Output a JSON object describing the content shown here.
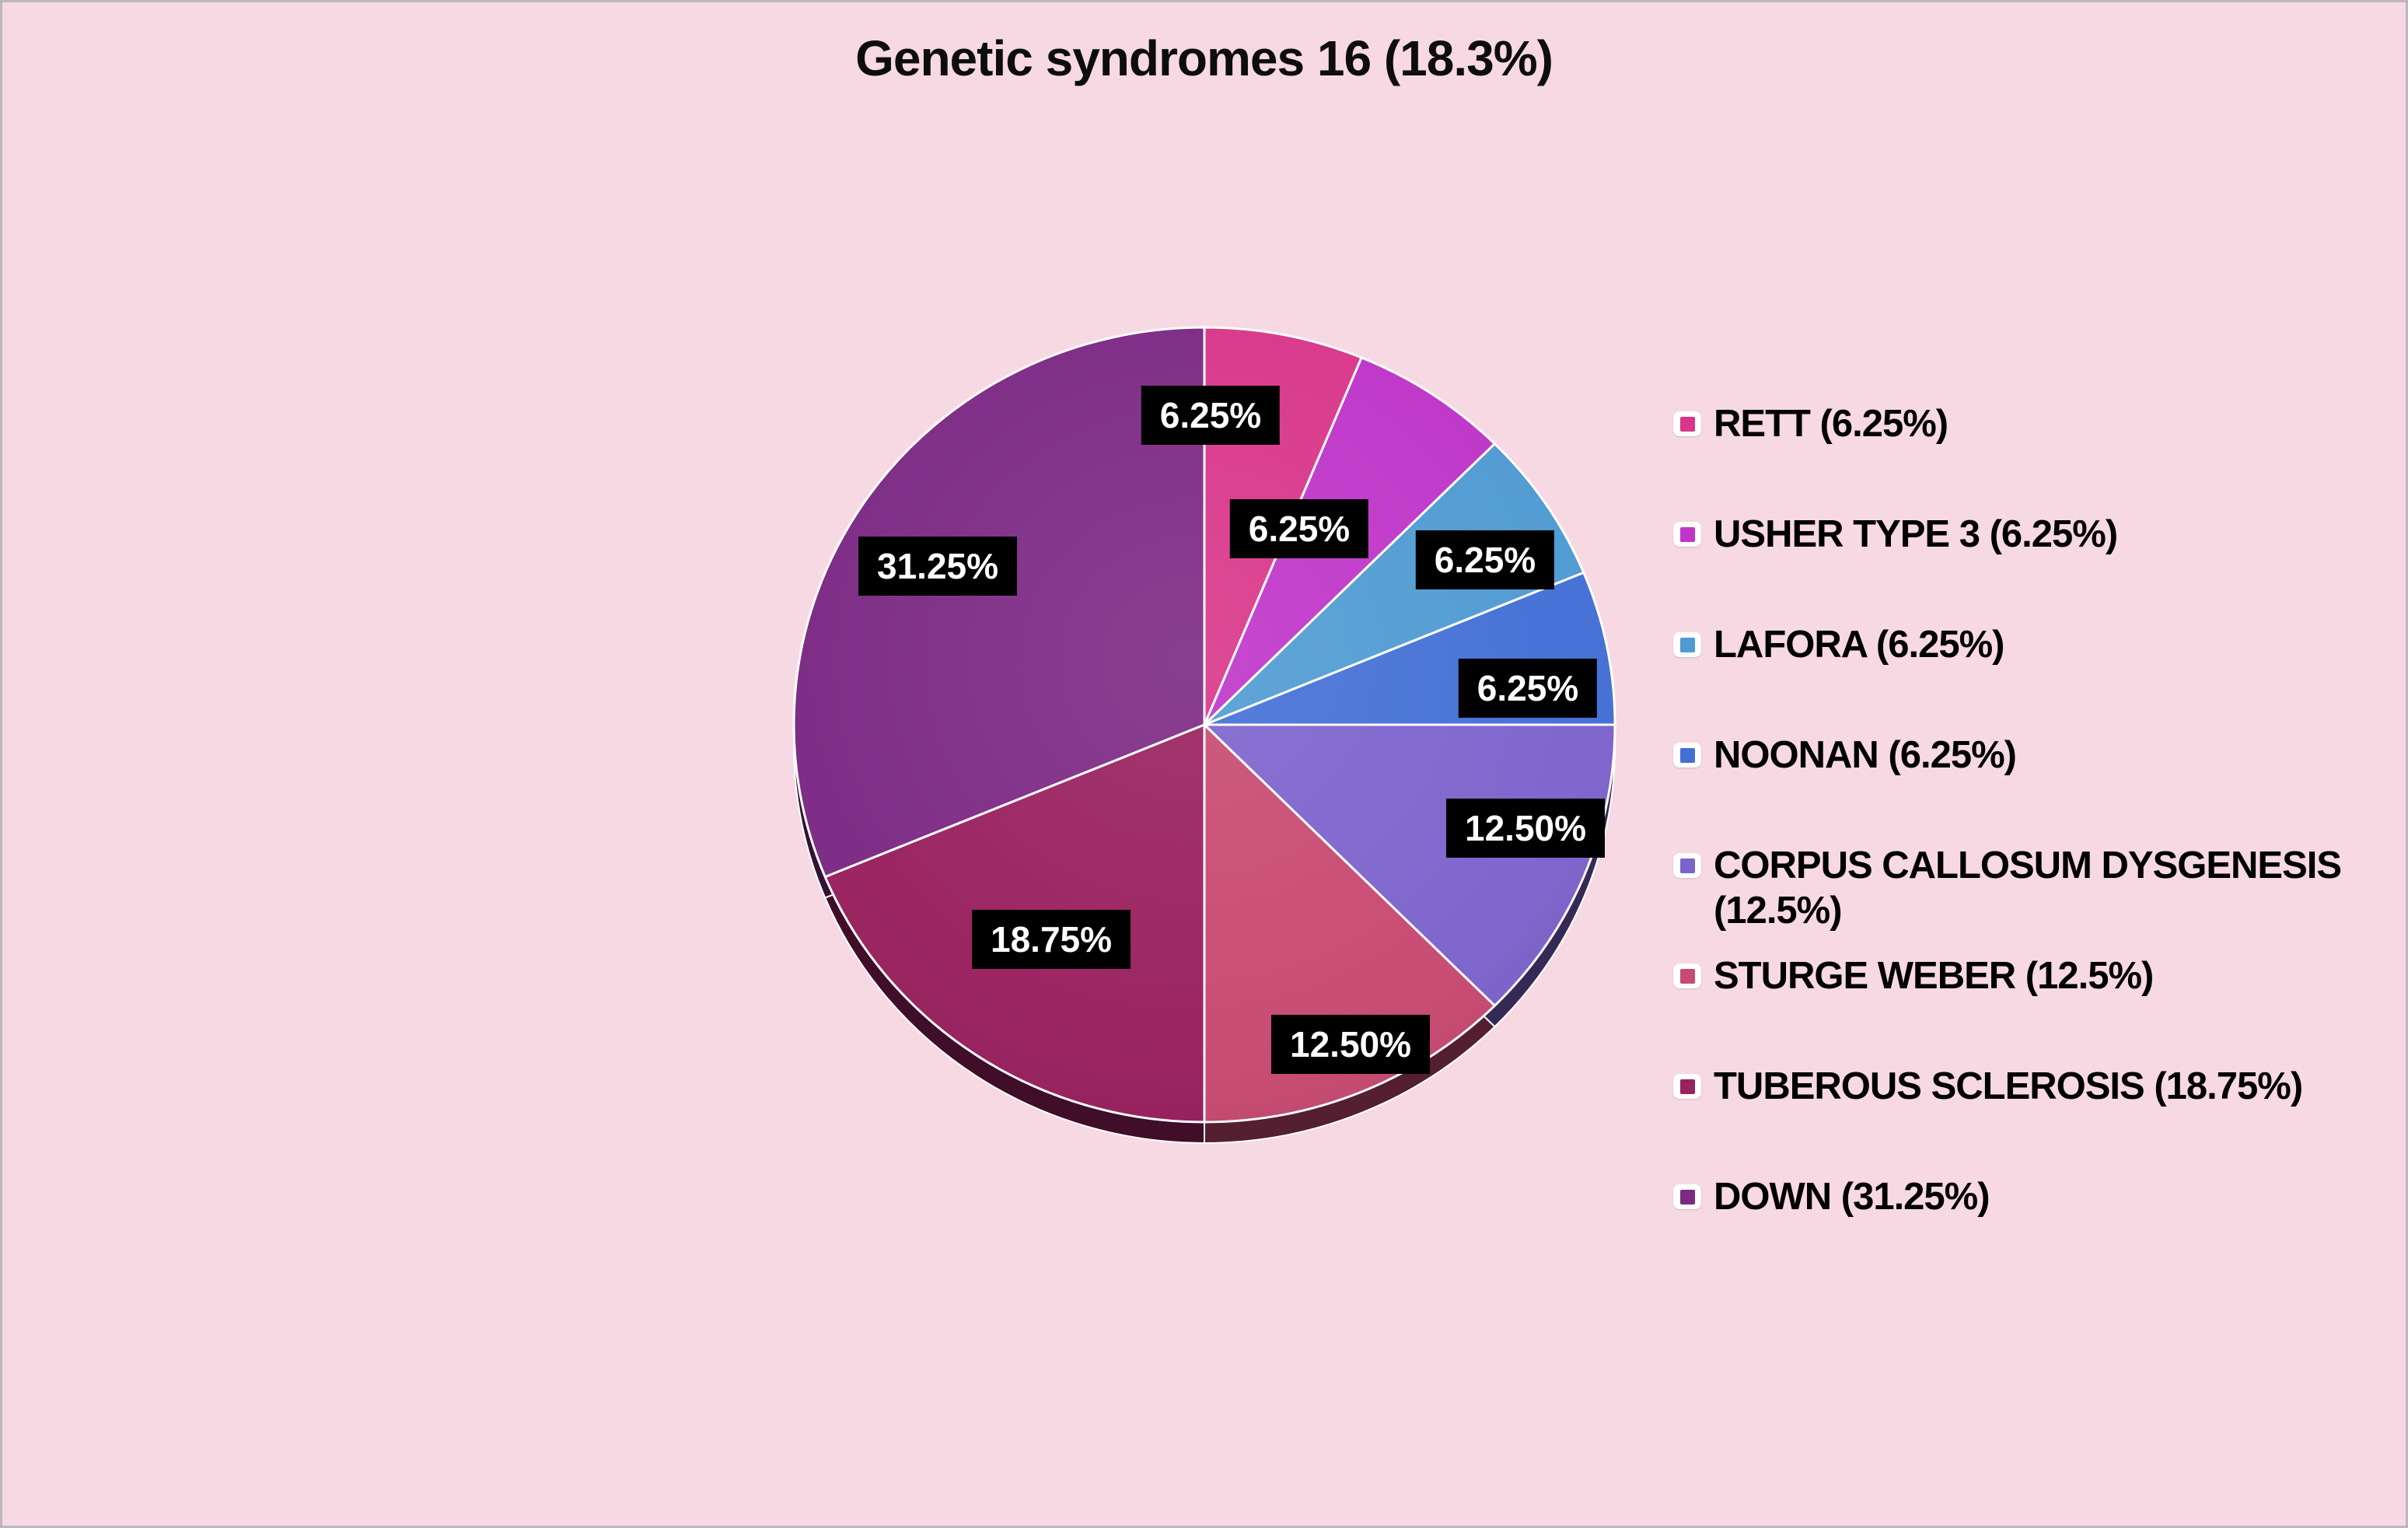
{
  "title": "Genetic syndromes 16 (18.3%)",
  "background_color": "#f7d9e3",
  "chart_data": {
    "type": "pie",
    "title": "Genetic syndromes 16 (18.3%)",
    "direction": "clockwise",
    "start_angle_deg": 0,
    "effect_3d": true,
    "legend_position": "right",
    "categories": [
      "RETT",
      "USHER TYPE 3",
      "LAFORA",
      "NOONAN",
      "CORPUS CALLOSUM DYSGENESIS",
      "STURGE WEBER",
      "TUBEROUS SCLEROSIS",
      "DOWN"
    ],
    "values": [
      6.25,
      6.25,
      6.25,
      6.25,
      12.5,
      12.5,
      18.75,
      31.25
    ],
    "data_labels": [
      "6.25%",
      "6.25%",
      "6.25%",
      "6.25%",
      "12.50%",
      "12.50%",
      "18.75%",
      "31.25%"
    ],
    "colors": [
      "#d9368a",
      "#bf35c9",
      "#4f9bd2",
      "#4470d6",
      "#7d64cd",
      "#c84a72",
      "#99215f",
      "#7c2a84"
    ],
    "data_label_style": {
      "background": "#000000",
      "color": "#ffffff"
    }
  },
  "legend": {
    "items": [
      {
        "label": " RETT (6.25%)",
        "color": "#d9368a"
      },
      {
        "label": "USHER TYPE 3 (6.25%)",
        "color": "#bf35c9"
      },
      {
        "label": "LAFORA (6.25%)",
        "color": "#4f9bd2"
      },
      {
        "label": "NOONAN (6.25%)",
        "color": "#4470d6"
      },
      {
        "label": "CORPUS CALLOSUM DYSGENESIS (12.5%)",
        "color": "#7d64cd"
      },
      {
        "label": "STURGE WEBER (12.5%)",
        "color": "#c84a72"
      },
      {
        "label": "TUBEROUS SCLEROSIS (18.75%)",
        "color": "#99215f"
      },
      {
        "label": "DOWN (31.25%)",
        "color": "#7c2a84"
      }
    ]
  }
}
